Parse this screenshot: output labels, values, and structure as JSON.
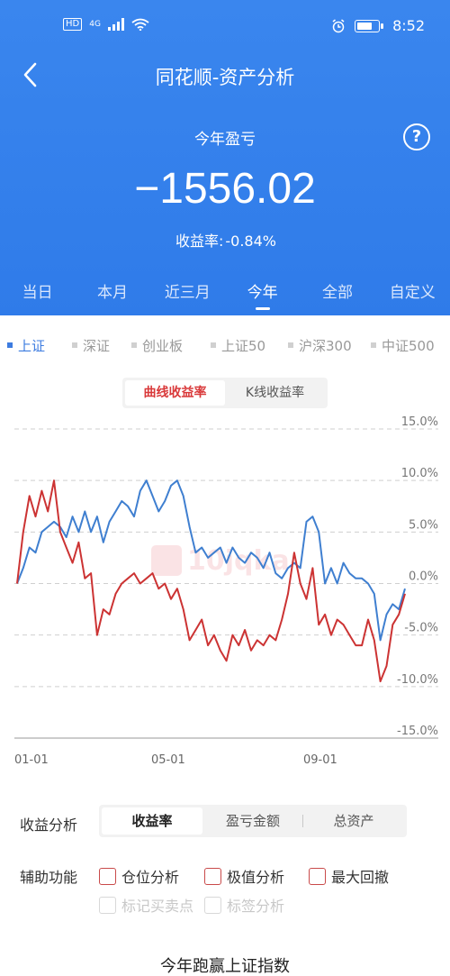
{
  "status": {
    "hd": "HD",
    "net": "4G",
    "time": "8:52"
  },
  "nav": {
    "title": "同花顺-资产分析"
  },
  "summary": {
    "label": "今年盈亏",
    "value": "−1556.02",
    "rate_label": "收益率:",
    "rate_value": "-0.84%"
  },
  "period_tabs": [
    {
      "label": "当日",
      "active": false
    },
    {
      "label": "本月",
      "active": false
    },
    {
      "label": "近三月",
      "active": false
    },
    {
      "label": "今年",
      "active": true
    },
    {
      "label": "全部",
      "active": false
    },
    {
      "label": "自定义",
      "active": false
    }
  ],
  "index_tabs": [
    {
      "label": "上证",
      "active": true
    },
    {
      "label": "深证",
      "active": false
    },
    {
      "label": "创业板",
      "active": false
    },
    {
      "label": "上证50",
      "active": false
    },
    {
      "label": "沪深300",
      "active": false
    },
    {
      "label": "中证500",
      "active": false
    }
  ],
  "curve_toggle": {
    "option1": "曲线收益率",
    "option2": "K线收益率"
  },
  "chart_data": {
    "type": "line",
    "title": "",
    "xlabel": "",
    "ylabel": "",
    "x_ticks": [
      "01-01",
      "05-01",
      "09-01"
    ],
    "y_ticks": [
      "15.0%",
      "10.0%",
      "5.0%",
      "0.0%",
      "-5.0%",
      "-10.0%",
      "-15.0%"
    ],
    "ylim": [
      -15,
      15
    ],
    "series": [
      {
        "color": "#3f7fd0",
        "x": [
          "01-01",
          "01-05",
          "01-10",
          "01-15",
          "01-20",
          "01-25",
          "02-01",
          "02-05",
          "02-10",
          "02-15",
          "02-20",
          "02-25",
          "03-01",
          "03-05",
          "03-10",
          "03-15",
          "03-20",
          "03-25",
          "04-01",
          "04-05",
          "04-10",
          "04-15",
          "04-20",
          "04-25",
          "05-01",
          "05-05",
          "05-10",
          "05-15",
          "05-20",
          "05-25",
          "06-01",
          "06-05",
          "06-10",
          "06-15",
          "06-20",
          "06-25",
          "07-01",
          "07-05",
          "07-10",
          "07-15",
          "07-20",
          "07-25",
          "08-01",
          "08-05",
          "08-10",
          "08-15",
          "08-20",
          "08-25",
          "09-01",
          "09-05",
          "09-10",
          "09-15",
          "09-20",
          "09-25",
          "10-01",
          "10-10",
          "10-15",
          "10-20",
          "10-25",
          "11-01",
          "11-05",
          "11-10",
          "11-15",
          "11-20"
        ],
        "values": [
          0.0,
          1.5,
          3.5,
          3.0,
          5.0,
          5.5,
          6.0,
          5.5,
          4.5,
          6.5,
          5.0,
          7.0,
          5.0,
          6.5,
          4.0,
          6.0,
          7.0,
          8.0,
          7.5,
          6.5,
          9.0,
          10.0,
          8.5,
          7.0,
          8.0,
          9.5,
          10.0,
          8.5,
          5.5,
          3.0,
          3.5,
          2.5,
          3.0,
          3.5,
          2.0,
          3.5,
          2.5,
          2.0,
          3.0,
          2.5,
          1.5,
          3.0,
          1.0,
          0.5,
          1.5,
          2.0,
          1.5,
          6.0,
          6.5,
          5.0,
          0.0,
          1.5,
          0.0,
          2.0,
          1.0,
          0.5,
          0.5,
          0.0,
          -1.0,
          -5.5,
          -3.0,
          -2.0,
          -2.5,
          -0.5
        ]
      },
      {
        "color": "#cc3333",
        "x": [
          "01-01",
          "01-05",
          "01-10",
          "01-15",
          "01-20",
          "01-25",
          "02-01",
          "02-05",
          "02-10",
          "02-15",
          "02-20",
          "02-25",
          "03-01",
          "03-05",
          "03-10",
          "03-15",
          "03-20",
          "03-25",
          "04-01",
          "04-05",
          "04-10",
          "04-15",
          "04-20",
          "04-25",
          "05-01",
          "05-05",
          "05-10",
          "05-15",
          "05-20",
          "05-25",
          "06-01",
          "06-05",
          "06-10",
          "06-15",
          "06-20",
          "06-25",
          "07-01",
          "07-05",
          "07-10",
          "07-15",
          "07-20",
          "07-25",
          "08-01",
          "08-05",
          "08-10",
          "08-15",
          "08-20",
          "08-25",
          "09-01",
          "09-05",
          "09-10",
          "09-15",
          "09-20",
          "09-25",
          "10-01",
          "10-10",
          "10-15",
          "10-20",
          "10-25",
          "11-01",
          "11-05",
          "11-10",
          "11-15",
          "11-20"
        ],
        "values": [
          0.0,
          5.0,
          8.5,
          6.5,
          9.0,
          7.0,
          10.0,
          5.0,
          3.5,
          2.0,
          4.0,
          0.5,
          1.0,
          -5.0,
          -2.5,
          -3.0,
          -1.0,
          0.0,
          0.5,
          1.0,
          0.0,
          0.5,
          1.0,
          -0.5,
          0.0,
          -1.5,
          -0.5,
          -2.5,
          -5.5,
          -4.5,
          -3.5,
          -6.0,
          -5.0,
          -6.5,
          -7.5,
          -5.0,
          -6.0,
          -4.5,
          -6.5,
          -5.5,
          -6.0,
          -5.0,
          -5.5,
          -3.5,
          -1.0,
          3.0,
          0.0,
          -1.5,
          1.5,
          -4.0,
          -3.0,
          -5.0,
          -3.5,
          -4.0,
          -5.0,
          -6.0,
          -6.0,
          -3.5,
          -5.5,
          -9.5,
          -8.0,
          -4.0,
          -3.0,
          -1.0
        ]
      }
    ],
    "grid": true
  },
  "analysis": {
    "label": "收益分析",
    "options": [
      "收益率",
      "盈亏金额",
      "总资产"
    ]
  },
  "aux": {
    "label": "辅助功能",
    "items": [
      "仓位分析",
      "极值分析",
      "最大回撤"
    ],
    "disabled_items": [
      "标记买卖点",
      "标签分析"
    ]
  },
  "footer": {
    "title": "今年跑赢上证指数"
  },
  "colors": {
    "blue": "#3a86ee",
    "red": "#cc3333",
    "line_blue": "#3f7fd0"
  }
}
